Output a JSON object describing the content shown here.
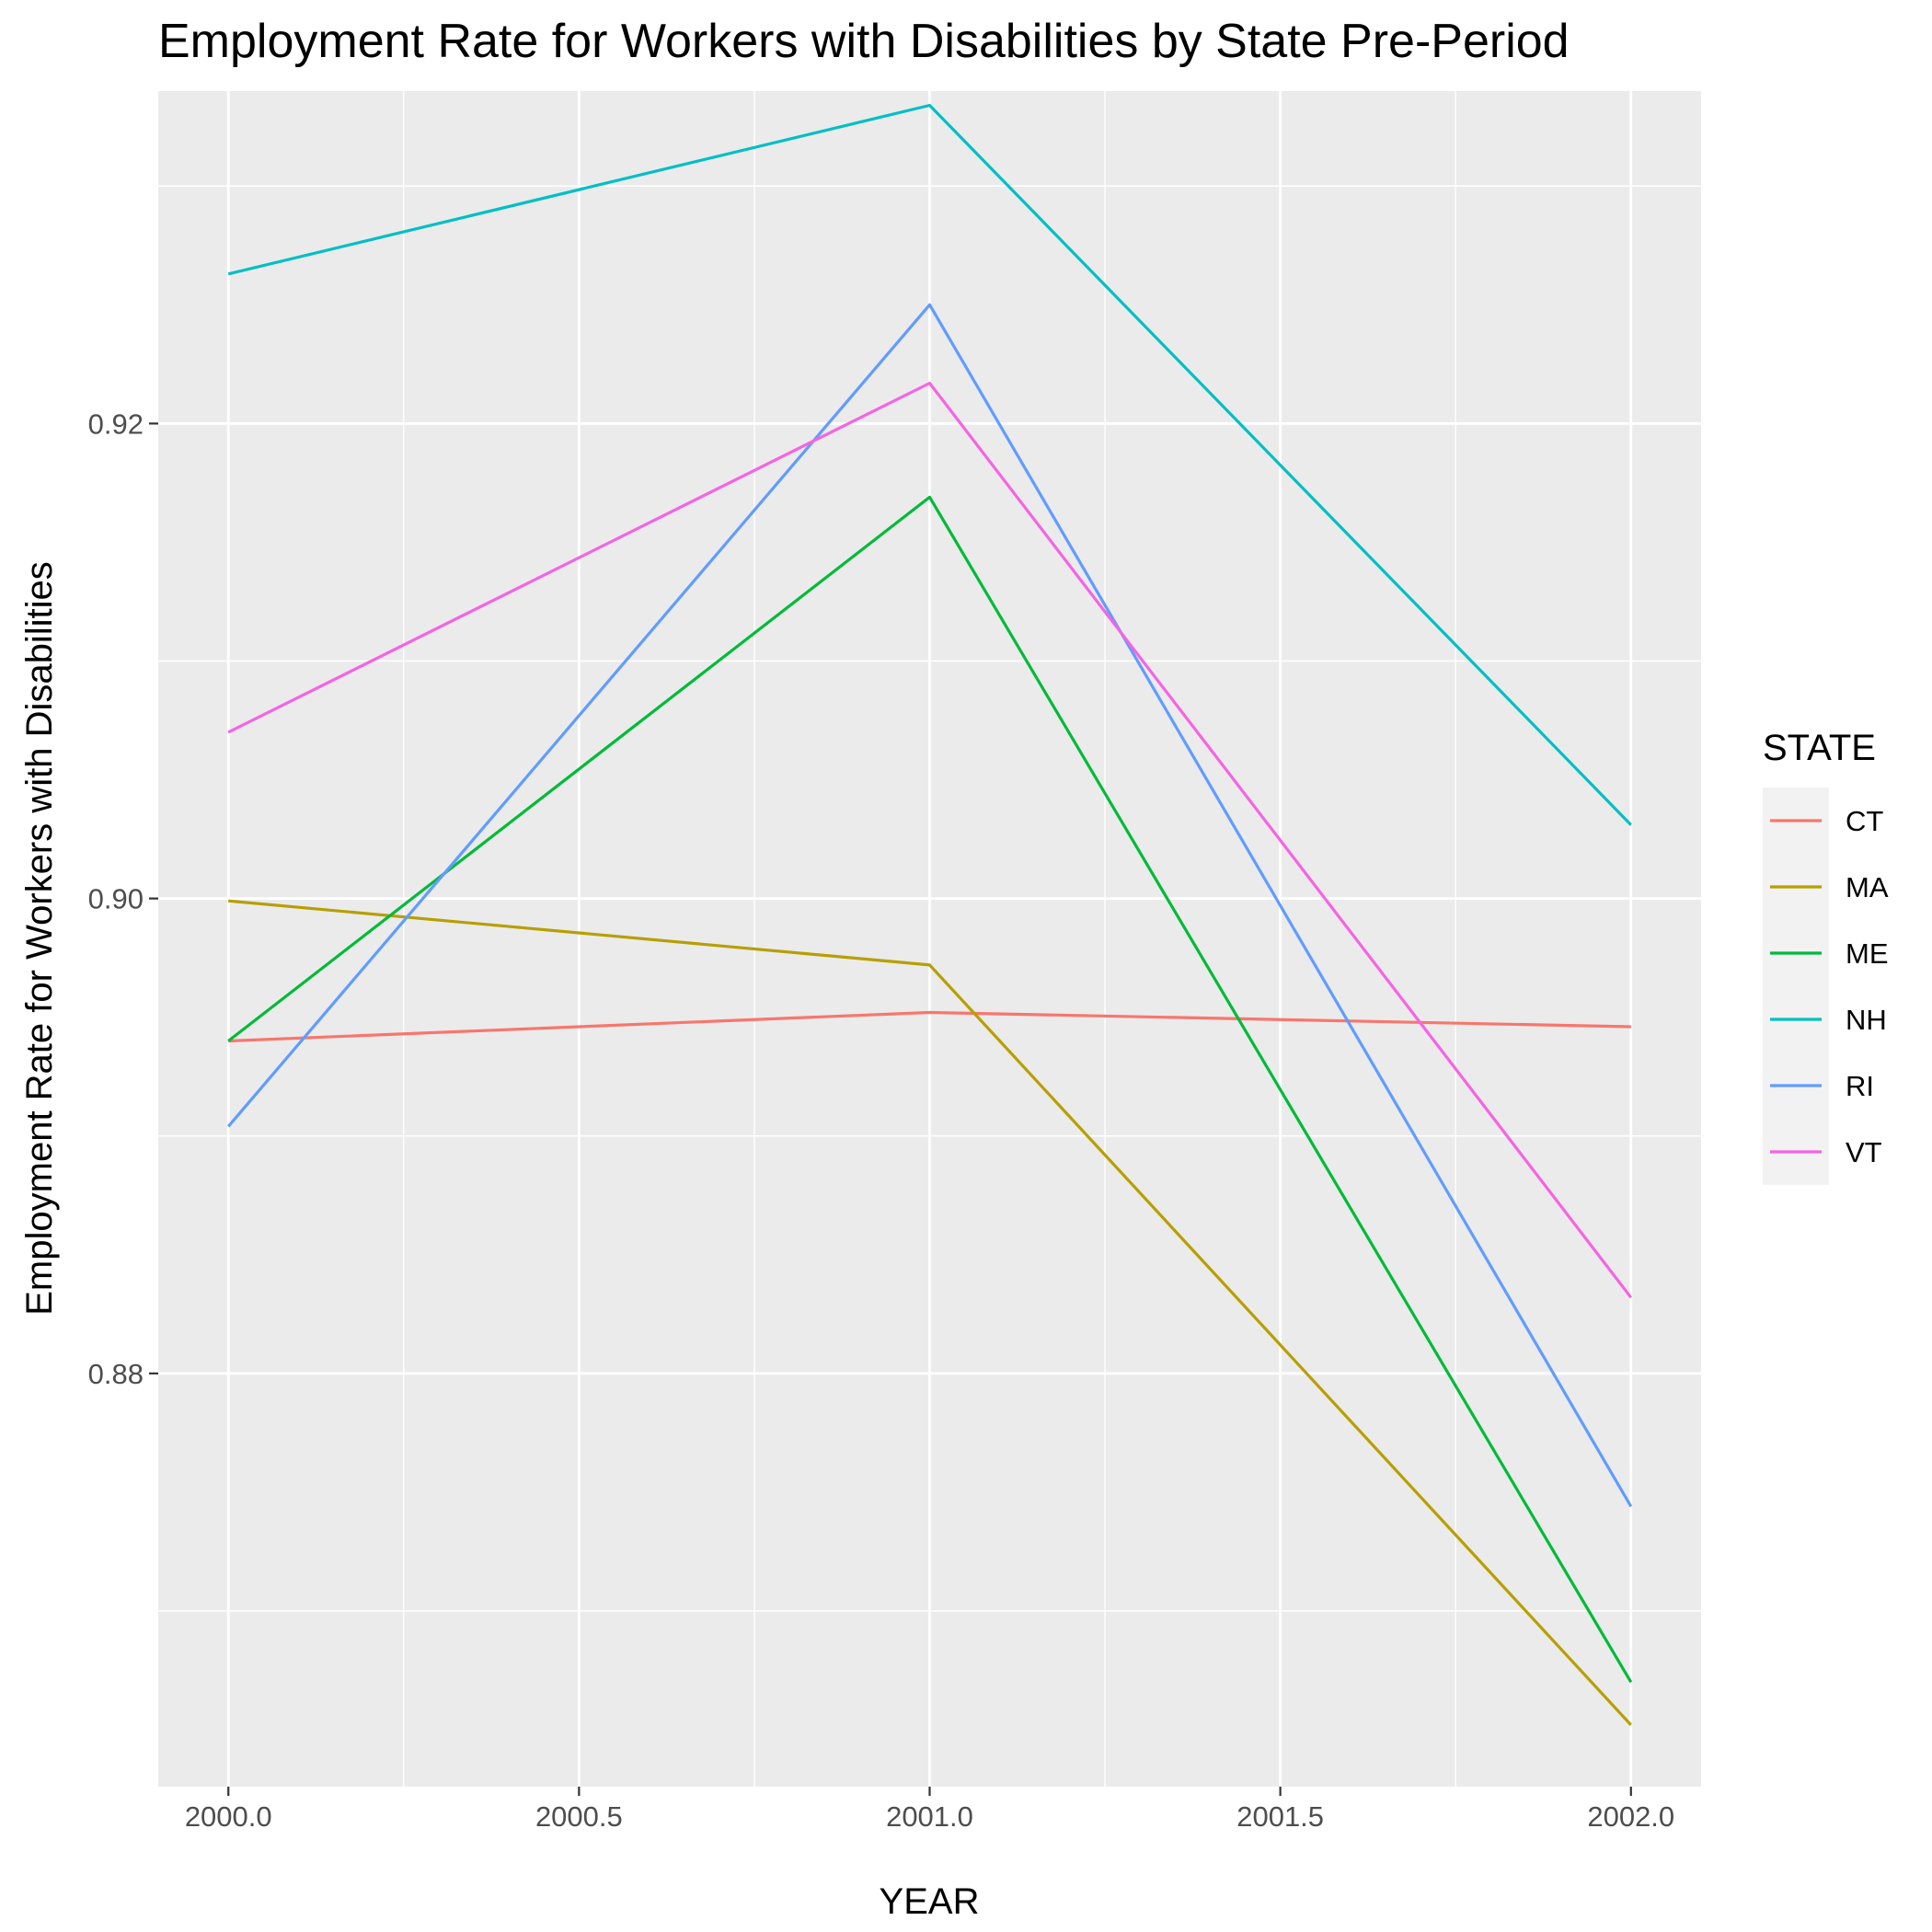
{
  "chart_data": {
    "type": "line",
    "title": "Employment Rate for Workers with Disabilities by State Pre-Period",
    "xlabel": "YEAR",
    "ylabel": "Employment Rate for Workers with Disabilities",
    "x": [
      2000,
      2001,
      2002
    ],
    "xlim": [
      1999.9,
      2002.1
    ],
    "ylim": [
      0.8626,
      0.934
    ],
    "x_ticks": [
      2000.0,
      2000.5,
      2001.0,
      2001.5,
      2002.0
    ],
    "x_tick_labels": [
      "2000.0",
      "2000.5",
      "2001.0",
      "2001.5",
      "2002.0"
    ],
    "y_ticks": [
      0.88,
      0.9,
      0.92
    ],
    "y_tick_labels": [
      "0.88",
      "0.90",
      "0.92"
    ],
    "grid": true,
    "legend_title": "STATE",
    "legend_position": "right",
    "series": [
      {
        "name": "CT",
        "color": "#F8766D",
        "values": [
          0.894,
          0.8952,
          0.8946
        ]
      },
      {
        "name": "MA",
        "color": "#B79F00",
        "values": [
          0.8999,
          0.8972,
          0.8652
        ]
      },
      {
        "name": "ME",
        "color": "#00BA38",
        "values": [
          0.894,
          0.9169,
          0.867
        ]
      },
      {
        "name": "NH",
        "color": "#00BFC4",
        "values": [
          0.9263,
          0.9334,
          0.9031
        ]
      },
      {
        "name": "RI",
        "color": "#619CFF",
        "values": [
          0.8904,
          0.925,
          0.8744
        ]
      },
      {
        "name": "VT",
        "color": "#F564E3",
        "values": [
          0.907,
          0.9217,
          0.8832
        ]
      }
    ]
  }
}
